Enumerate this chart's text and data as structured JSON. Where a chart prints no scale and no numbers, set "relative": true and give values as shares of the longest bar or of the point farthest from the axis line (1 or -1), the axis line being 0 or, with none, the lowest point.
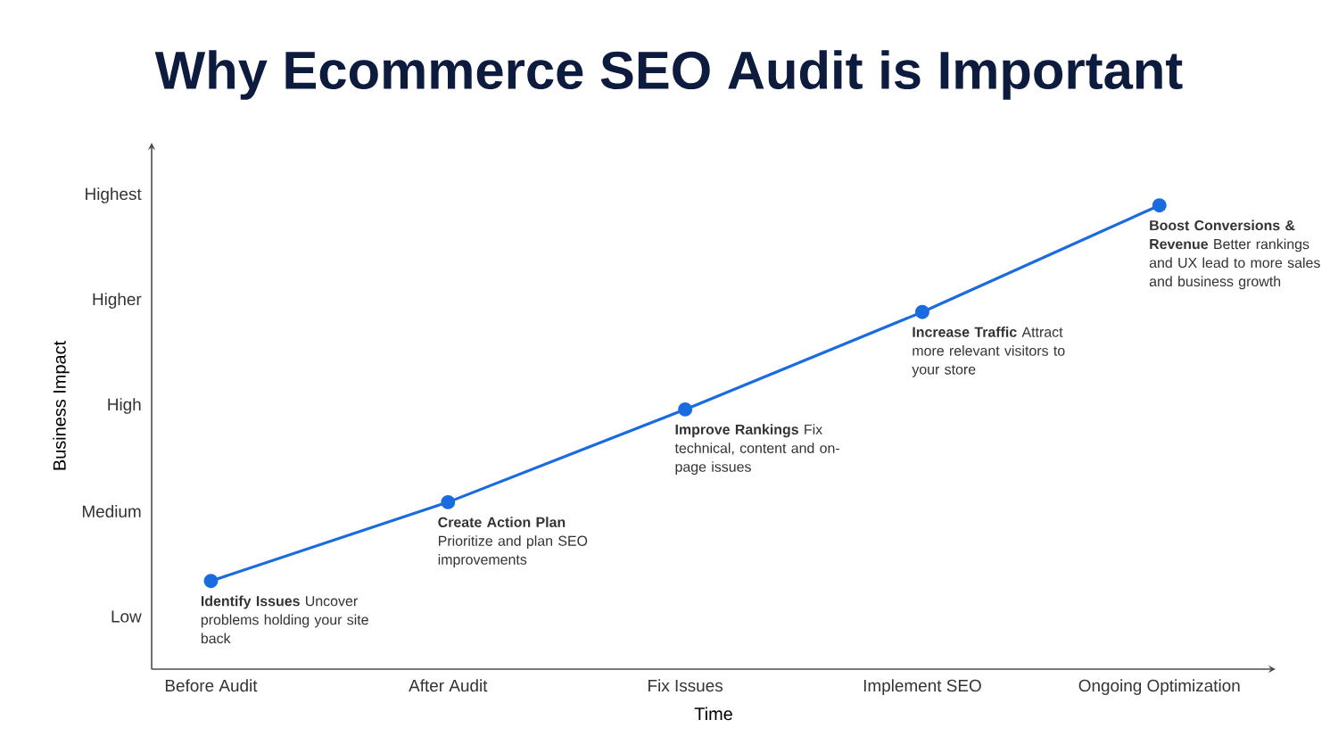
{
  "chart_data": {
    "type": "line",
    "title": "Why Ecommerce SEO Audit is Important",
    "xlabel": "Time",
    "ylabel": "Business Impact",
    "categories": [
      "Before Audit",
      "After Audit",
      "Fix Issues",
      "Implement SEO",
      "Ongoing Optimization"
    ],
    "y_categories": [
      "Highest",
      "Higher",
      "High",
      "Medium",
      "Low"
    ],
    "relative": true,
    "series": [
      {
        "color": "#1a6be0",
        "values": [
          0.19,
          0.36,
          0.56,
          0.77,
          1
        ]
      }
    ],
    "marker": "circle",
    "line_style": "solid",
    "grid": false,
    "annotations": [
      {
        "text": "**Identify Issues** Uncover problems holding your site back",
        "x": "Before Audit",
        "y": 0.19
      },
      {
        "text": "**Create Action Plan** Prioritize and plan SEO improvements",
        "x": "After Audit",
        "y": 0.36
      },
      {
        "text": "**Improve Rankings** Fix technical, content and on-page issues",
        "x": "Fix Issues",
        "y": 0.56
      },
      {
        "text": "**Increase Traffic** Attract more relevant visitors to your store",
        "x": "Implement SEO",
        "y": 0.77
      },
      {
        "text": "**Boost Conversions & Revenue** Better rankings and UX lead to more sales and business growth",
        "x": "Ongoing Optimization",
        "y": 1
      }
    ]
  }
}
